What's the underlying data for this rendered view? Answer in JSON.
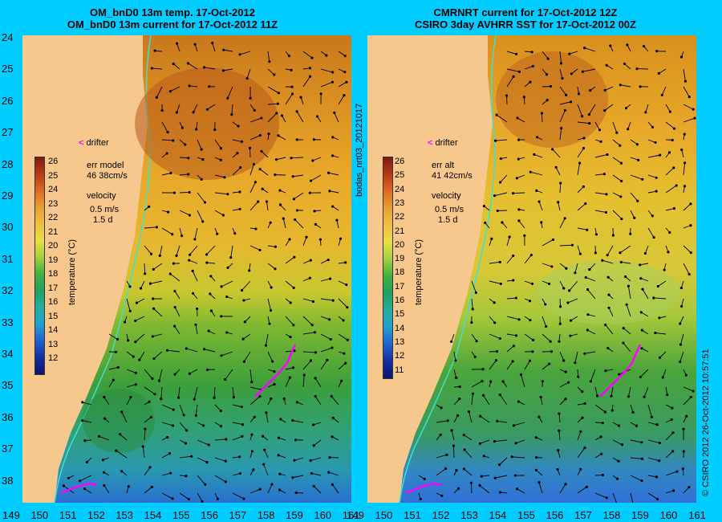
{
  "left_panel": {
    "title_line1": "OM_bnD0 13m temp. 17-Oct-2012",
    "title_line2": "OM_bnD0 13m current for 17-Oct-2012 11Z",
    "err_label": "err model",
    "err_value": "46 38cm/s",
    "velocity_label": "velocity",
    "scale_speed": "0.5 m/s",
    "scale_time": "1.5 d",
    "drifter_label": "drifter",
    "colorbar_label": "temperature (°C)",
    "colorbar_ticks": [
      "26",
      "25",
      "24",
      "23",
      "22",
      "21",
      "20",
      "19",
      "18",
      "17",
      "16",
      "15",
      "14",
      "13",
      "12"
    ]
  },
  "right_panel": {
    "title_line1": "CMRNRT current for 17-Oct-2012 12Z",
    "title_line2": "CSIRO 3day AVHRR SST for 17-Oct-2012 00Z",
    "err_label": "err alt",
    "err_value": "41 42cm/s",
    "velocity_label": "velocity",
    "scale_speed": "0.5 m/s",
    "scale_time": "1.5 d",
    "drifter_label": "drifter",
    "colorbar_label": "temperature (°C)",
    "colorbar_ticks": [
      "26",
      "25",
      "24",
      "23",
      "22",
      "21",
      "20",
      "19",
      "18",
      "17",
      "16",
      "15",
      "14",
      "13",
      "12",
      "11"
    ]
  },
  "side_label_center": "bodas_nrt03_20121017",
  "side_label_right": "© CSIRO 2012   26-Oct-2012 10:57:51",
  "lat_ticks": [
    "24",
    "25",
    "26",
    "27",
    "28",
    "29",
    "30",
    "31",
    "32",
    "33",
    "34",
    "35",
    "36",
    "37",
    "38"
  ],
  "lon_ticks": [
    "149",
    "150",
    "151",
    "152",
    "153",
    "154",
    "155",
    "156",
    "157",
    "158",
    "159",
    "160",
    "161"
  ],
  "colors": {
    "background": "#00ccff",
    "land": "#f7c88e",
    "drifter": "#ff00ff",
    "coastline": "#40e0d0"
  }
}
